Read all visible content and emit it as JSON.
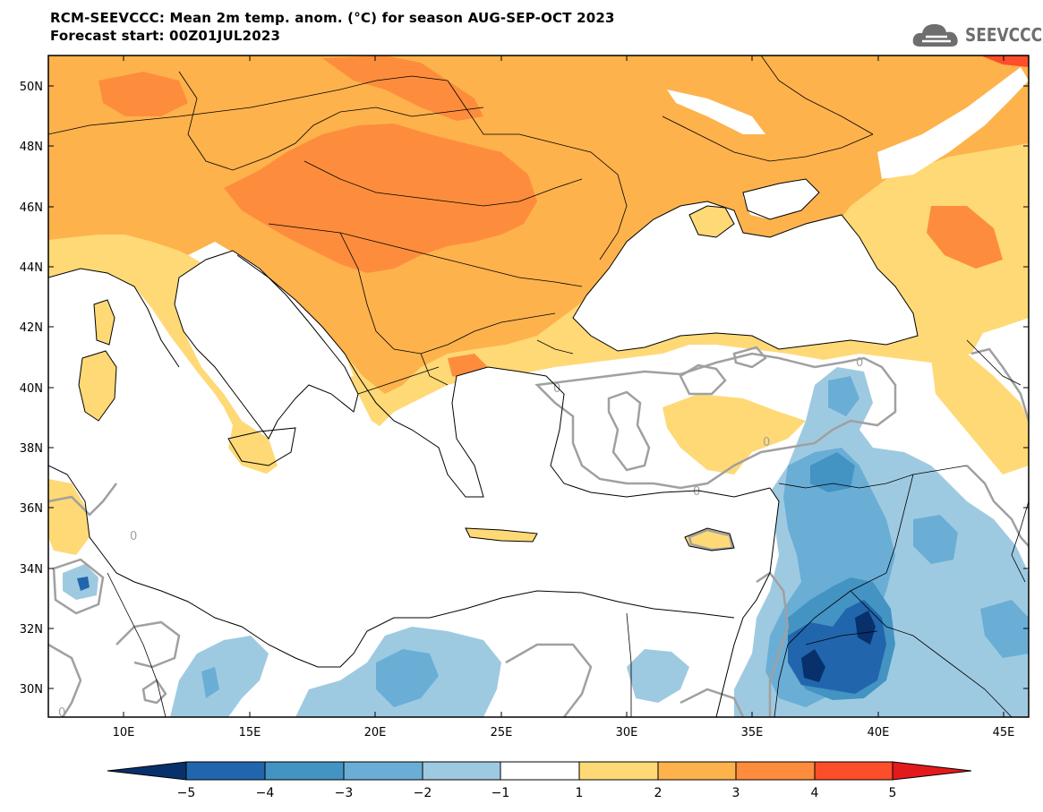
{
  "header": {
    "title_line1": "RCM-SEEVCCC: Mean 2m temp. anom. (°C) for season AUG-SEP-OCT 2023",
    "title_line2": "Forecast start: 00Z01JUL2023",
    "logo_text": "SEEVCCC"
  },
  "map": {
    "lat_labels": [
      "50N",
      "48N",
      "46N",
      "44N",
      "42N",
      "40N",
      "38N",
      "36N",
      "34N",
      "32N",
      "30N"
    ],
    "lon_labels": [
      "10E",
      "15E",
      "20E",
      "25E",
      "30E",
      "35E",
      "40E",
      "45E"
    ],
    "contour_label": "0"
  },
  "colorbar": {
    "labels": [
      "−5",
      "−4",
      "−3",
      "−2",
      "−1",
      "1",
      "2",
      "3",
      "4",
      "5"
    ],
    "colors": [
      "#08306b",
      "#2166ac",
      "#4393c3",
      "#6aaed6",
      "#9ecae1",
      "#ffffff",
      "#fed976",
      "#feb24c",
      "#fd8d3c",
      "#fc4e2a",
      "#e31a1c"
    ]
  },
  "palette": {
    "warm1": "#fed976",
    "warm2": "#feb24c",
    "warm3": "#fd8d3c",
    "warm4": "#fc4e2a",
    "cold1": "#9ecae1",
    "cold2": "#6aaed6",
    "cold3": "#4393c3",
    "cold4": "#2166ac",
    "cold5": "#08306b",
    "contour": "#a0a0a0"
  }
}
